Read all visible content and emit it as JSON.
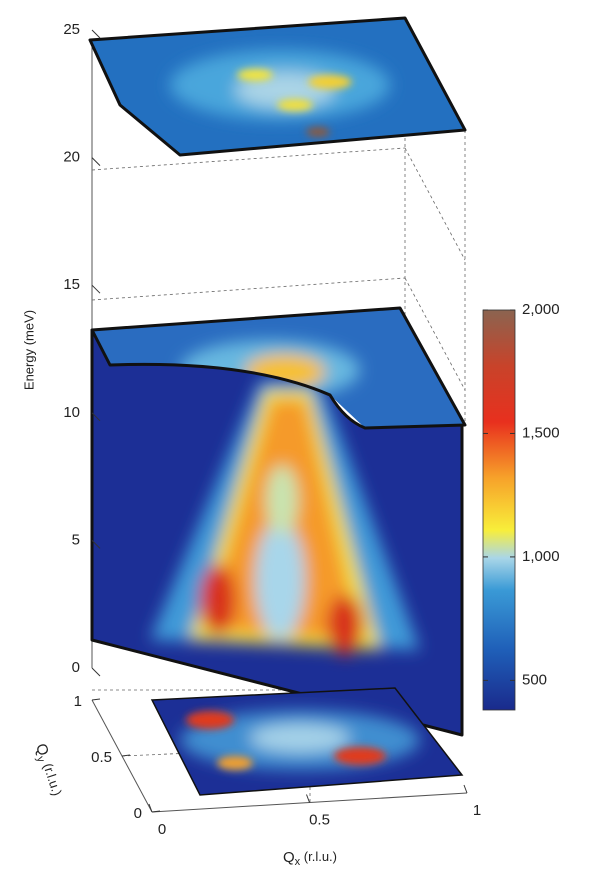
{
  "chart_data": {
    "type": "slices3d",
    "zlabel": "Energy (meV)",
    "xlabel": {
      "symbol": "Q",
      "subscript": "x",
      "unit": " (r.l.u.)"
    },
    "ylabel": {
      "symbol": "Q",
      "subscript": "y",
      "unit": " (r.l.u.)"
    },
    "zlim": [
      0,
      25
    ],
    "zticks": [
      0,
      5,
      10,
      15,
      20,
      25
    ],
    "xlim": [
      0,
      1
    ],
    "xticks": [
      0,
      0.5,
      1
    ],
    "ylim": [
      0,
      1
    ],
    "yticks": [
      0,
      0.5,
      1
    ],
    "colorbar": {
      "clim": [
        380,
        2000
      ],
      "cticks": [
        500,
        {
          "value": 1000,
          "label": "1,000"
        },
        {
          "value": 1500,
          "label": "1,500"
        },
        {
          "value": 2000,
          "label": "2,000"
        }
      ]
    }
  }
}
